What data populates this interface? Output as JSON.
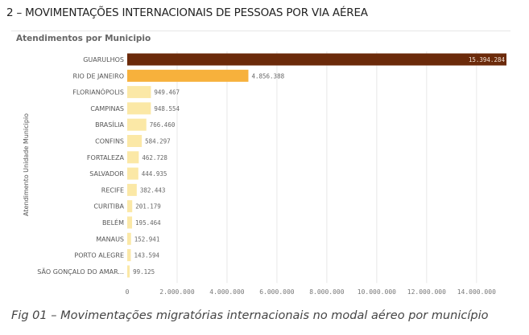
{
  "heading": "2 – MOVIMENTAÇÕES INTERNACIONAIS DE PESSOAS POR VIA AÉREA",
  "caption": "Fig 01 – Movimentações migratórias internacionais no modal aéreo por município",
  "chart_data": {
    "type": "bar",
    "orientation": "horizontal",
    "title": "Atendimentos por Municipio",
    "ylabel": "Atendimento Unidade Municipio",
    "xlabel": "",
    "categories": [
      "GUARULHOS",
      "RIO DE JANEIRO",
      "FLORIANÓPOLIS",
      "CAMPINAS",
      "BRASÍLIA",
      "CONFINS",
      "FORTALEZA",
      "SALVADOR",
      "RECIFE",
      "CURITIBA",
      "BELÉM",
      "MANAUS",
      "PORTO ALEGRE",
      "SÃO GONÇALO DO AMAR..."
    ],
    "values": [
      15394284,
      4856388,
      949467,
      948554,
      766460,
      584297,
      462728,
      444935,
      382443,
      201179,
      195464,
      152941,
      143594,
      99125
    ],
    "value_labels": [
      "15.394.284",
      "4.856.388",
      "949.467",
      "948.554",
      "766.460",
      "584.297",
      "462.728",
      "444.935",
      "382.443",
      "201.179",
      "195.464",
      "152.941",
      "143.594",
      "99.125"
    ],
    "xticks": [
      0,
      2000000,
      4000000,
      6000000,
      8000000,
      10000000,
      12000000,
      14000000
    ],
    "xtick_labels": [
      "0",
      "2.000.000",
      "4.000.000",
      "6.000.000",
      "8.000.000",
      "10.000.000",
      "12.000.000",
      "14.000.000"
    ],
    "xlim": [
      0,
      15200000
    ],
    "grid": true,
    "colors": {
      "max": "#6b2a0a",
      "high": "#f7b13c",
      "low": "#fbe8a6"
    }
  }
}
